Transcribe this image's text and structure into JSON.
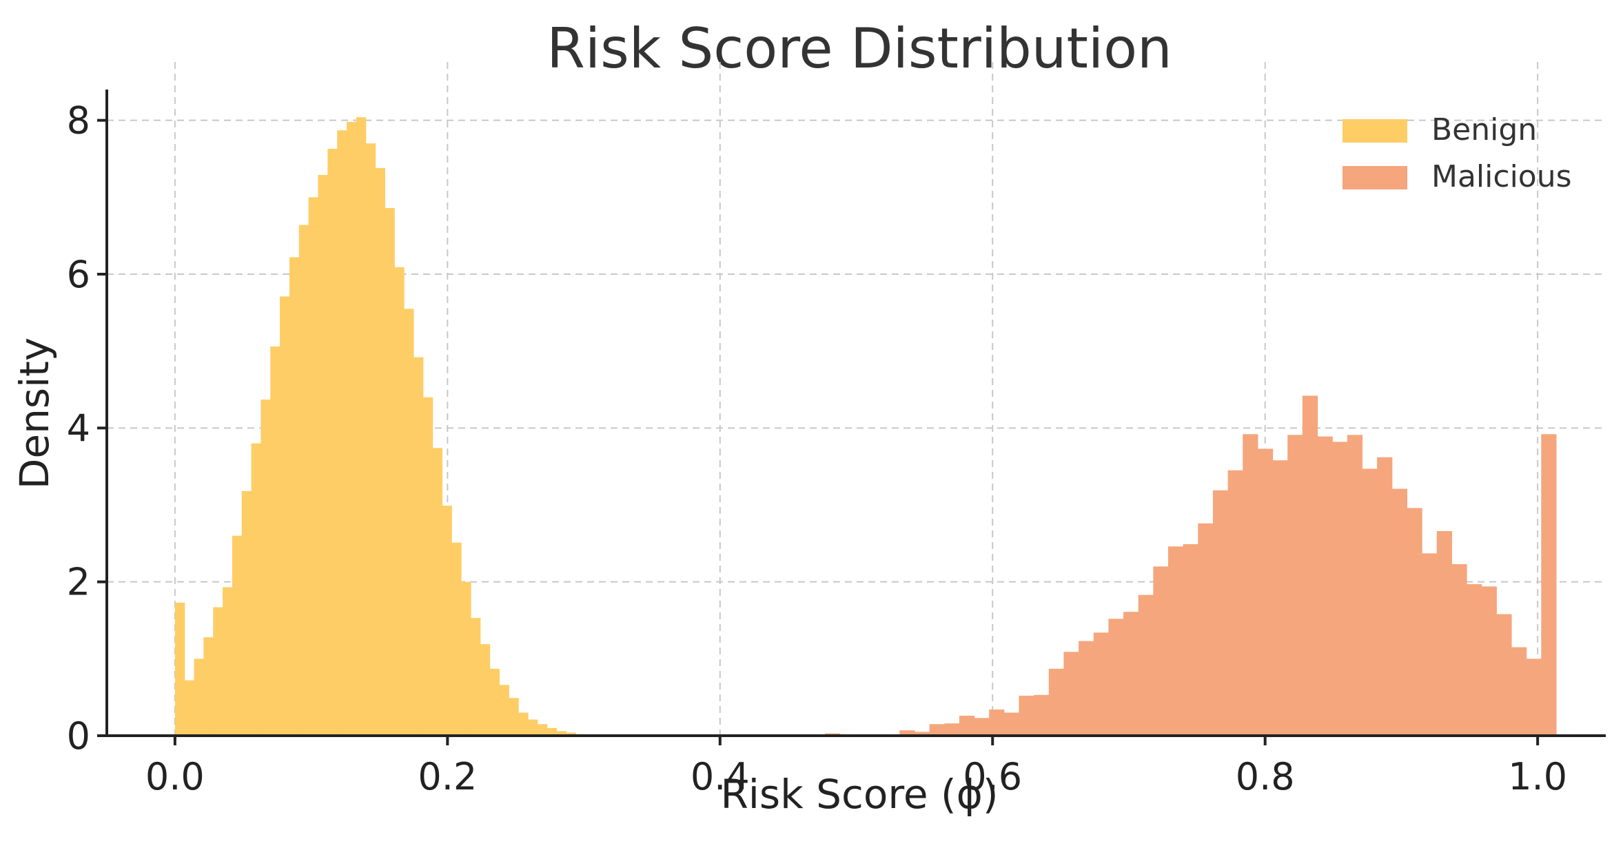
{
  "chart_data": {
    "type": "bar",
    "title": "Risk Score Distribution",
    "xlabel": "Risk Score (ϕ)",
    "ylabel": "Density",
    "xlim": [
      -0.05,
      1.05
    ],
    "ylim": [
      0,
      8.4
    ],
    "xticks": [
      "0.0",
      "0.2",
      "0.4",
      "0.6",
      "0.8",
      "1.0"
    ],
    "yticks": [
      "0",
      "2",
      "4",
      "6",
      "8"
    ],
    "grid": true,
    "legend_position": "top-right",
    "series": [
      {
        "name": "Benign",
        "color": "#fecd66",
        "bin_start": 0.0,
        "bin_width": 0.007,
        "values": [
          1.73,
          0.72,
          1.0,
          1.28,
          1.67,
          1.93,
          2.6,
          3.18,
          3.8,
          4.37,
          5.06,
          5.71,
          6.22,
          6.64,
          7.0,
          7.29,
          7.63,
          7.87,
          7.98,
          8.04,
          7.7,
          7.38,
          6.86,
          6.09,
          5.55,
          4.92,
          4.4,
          3.74,
          2.99,
          2.51,
          2.0,
          1.53,
          1.19,
          0.87,
          0.66,
          0.49,
          0.3,
          0.21,
          0.15,
          0.1,
          0.06,
          0.04,
          0.02,
          0.01
        ]
      },
      {
        "name": "Malicious",
        "color": "#f5a67c",
        "bin_start": 0.477,
        "bin_width": 0.01095,
        "values": [
          0.03,
          0.0,
          0.0,
          0.0,
          0.0,
          0.07,
          0.05,
          0.15,
          0.16,
          0.26,
          0.23,
          0.34,
          0.3,
          0.52,
          0.53,
          0.87,
          1.09,
          1.23,
          1.34,
          1.52,
          1.61,
          1.83,
          2.2,
          2.46,
          2.49,
          2.76,
          3.19,
          3.45,
          3.92,
          3.73,
          3.58,
          3.91,
          4.42,
          3.89,
          3.82,
          3.91,
          3.47,
          3.62,
          3.21,
          2.96,
          2.37,
          2.66,
          2.23,
          1.97,
          1.94,
          1.58,
          1.15,
          1.0,
          3.92
        ]
      }
    ]
  }
}
